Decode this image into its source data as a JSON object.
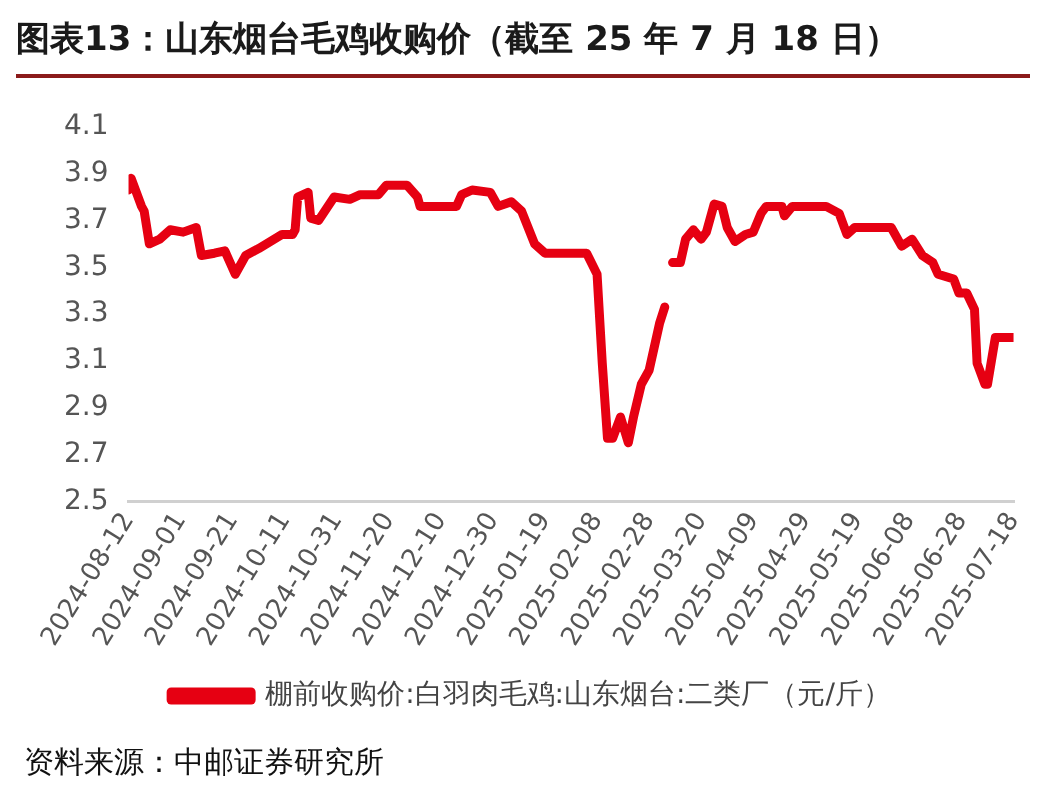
{
  "chart_data": {
    "type": "line",
    "title": "图表13：山东烟台毛鸡收购价（截至 25 年 7 月 18 日）",
    "x": [
      "2024-08-12",
      "2024-08-13",
      "2024-08-17",
      "2024-08-18",
      "2024-08-20",
      "2024-08-24",
      "2024-08-28",
      "2024-09-02",
      "2024-09-07",
      "2024-09-09",
      "2024-09-14",
      "2024-09-18",
      "2024-09-22",
      "2024-09-26",
      "2024-10-01",
      "2024-10-10",
      "2024-10-14",
      "2024-10-15",
      "2024-10-16",
      "2024-10-20",
      "2024-10-21",
      "2024-10-24",
      "2024-10-30",
      "2024-11-05",
      "2024-11-09",
      "2024-11-16",
      "2024-11-19",
      "2024-11-27",
      "2024-12-01",
      "2024-12-02",
      "2024-12-16",
      "2024-12-18",
      "2024-12-22",
      "2024-12-29",
      "2025-01-01",
      "2025-01-06",
      "2025-01-10",
      "2025-01-15",
      "2025-01-19",
      "2025-02-04",
      "2025-02-08",
      "2025-02-10",
      "2025-02-12",
      "2025-02-14",
      "2025-02-17",
      "2025-02-20",
      "2025-02-22",
      "2025-02-25",
      "2025-02-28",
      "2025-03-04",
      "2025-03-06",
      "2025-03-07",
      "2025-03-09",
      "2025-03-12",
      "2025-03-14",
      "2025-03-17",
      "2025-03-20",
      "2025-03-22",
      "2025-03-25",
      "2025-03-28",
      "2025-03-30",
      "2025-04-02",
      "2025-04-06",
      "2025-04-09",
      "2025-04-12",
      "2025-04-14",
      "2025-04-20",
      "2025-04-21",
      "2025-04-24",
      "2025-05-07",
      "2025-05-12",
      "2025-05-15",
      "2025-05-18",
      "2025-06-01",
      "2025-06-05",
      "2025-06-09",
      "2025-06-13",
      "2025-06-17",
      "2025-06-19",
      "2025-06-25",
      "2025-06-27",
      "2025-06-30",
      "2025-07-03",
      "2025-07-04",
      "2025-07-07",
      "2025-07-08",
      "2025-07-11",
      "2025-07-18"
    ],
    "series": [
      {
        "name": "棚前收购价:白羽肉毛鸡:山东烟台:二类厂（元/斤）",
        "color": "#e60012",
        "values": [
          3.83,
          3.88,
          3.76,
          3.74,
          3.6,
          3.62,
          3.66,
          3.65,
          3.67,
          3.55,
          3.56,
          3.57,
          3.47,
          3.55,
          3.58,
          3.64,
          3.64,
          3.66,
          3.8,
          3.82,
          3.71,
          3.7,
          3.8,
          3.79,
          3.81,
          3.81,
          3.85,
          3.85,
          3.8,
          3.76,
          3.76,
          3.81,
          3.83,
          3.82,
          3.76,
          3.78,
          3.74,
          3.6,
          3.56,
          3.56,
          3.47,
          3.09,
          2.77,
          2.77,
          2.86,
          2.75,
          2.86,
          3.0,
          3.06,
          3.26,
          3.33,
          null,
          3.52,
          3.52,
          3.62,
          3.66,
          3.62,
          3.65,
          3.77,
          3.76,
          3.67,
          3.61,
          3.64,
          3.65,
          3.73,
          3.76,
          3.76,
          3.72,
          3.76,
          3.76,
          3.73,
          3.64,
          3.67,
          3.67,
          3.59,
          3.62,
          3.55,
          3.52,
          3.47,
          3.45,
          3.39,
          3.39,
          3.32,
          3.09,
          3.0,
          3.0,
          3.2,
          3.2
        ]
      }
    ],
    "xlim": [
      "2024-08-12",
      "2025-07-18"
    ],
    "xticks": [
      "2024-08-12",
      "2024-09-01",
      "2024-09-21",
      "2024-10-11",
      "2024-10-31",
      "2024-11-20",
      "2024-12-10",
      "2024-12-30",
      "2025-01-19",
      "2025-02-08",
      "2025-02-28",
      "2025-03-20",
      "2025-04-09",
      "2025-04-29",
      "2025-05-19",
      "2025-06-08",
      "2025-06-28",
      "2025-07-18"
    ],
    "ylim": [
      2.5,
      4.1
    ],
    "yticks": [
      2.5,
      2.7,
      2.9,
      3.1,
      3.3,
      3.5,
      3.7,
      3.9,
      4.1
    ],
    "grid": false,
    "legend": "bottom",
    "marker": "none",
    "line_style": "solid",
    "annotations": [
      "资料来源：中邮证券研究所"
    ]
  }
}
